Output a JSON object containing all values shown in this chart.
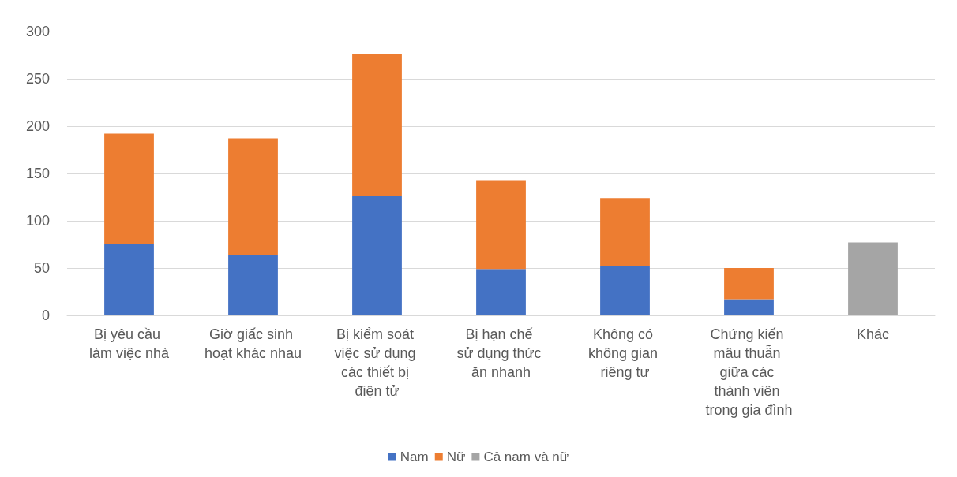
{
  "chart_data": {
    "type": "bar",
    "stacked": true,
    "categories": [
      "Bị yêu cầu làm việc nhà",
      "Giờ giấc sinh hoạt khác nhau",
      "Bị kiểm soát việc sử dụng các thiết bị điện tử",
      "Bị hạn chế sử dụng thức ăn nhanh",
      "Không có không gian riêng tư",
      "Chứng kiến mâu thuẫn giữa các thành viên trong gia đình",
      "Khác"
    ],
    "series": [
      {
        "name": "Nam",
        "color": "#4472c4",
        "values": [
          75,
          64,
          126,
          49,
          52,
          17,
          null
        ]
      },
      {
        "name": "Nữ",
        "color": "#ed7d31",
        "values": [
          117,
          123,
          150,
          94,
          72,
          33,
          null
        ]
      },
      {
        "name": "Cả nam và nữ",
        "color": "#a5a5a5",
        "values": [
          null,
          null,
          null,
          null,
          null,
          null,
          77
        ]
      }
    ],
    "ylim": [
      0,
      300
    ],
    "yticks": [
      0,
      50,
      100,
      150,
      200,
      250,
      300
    ],
    "grid": "y",
    "legend": "bottom"
  }
}
